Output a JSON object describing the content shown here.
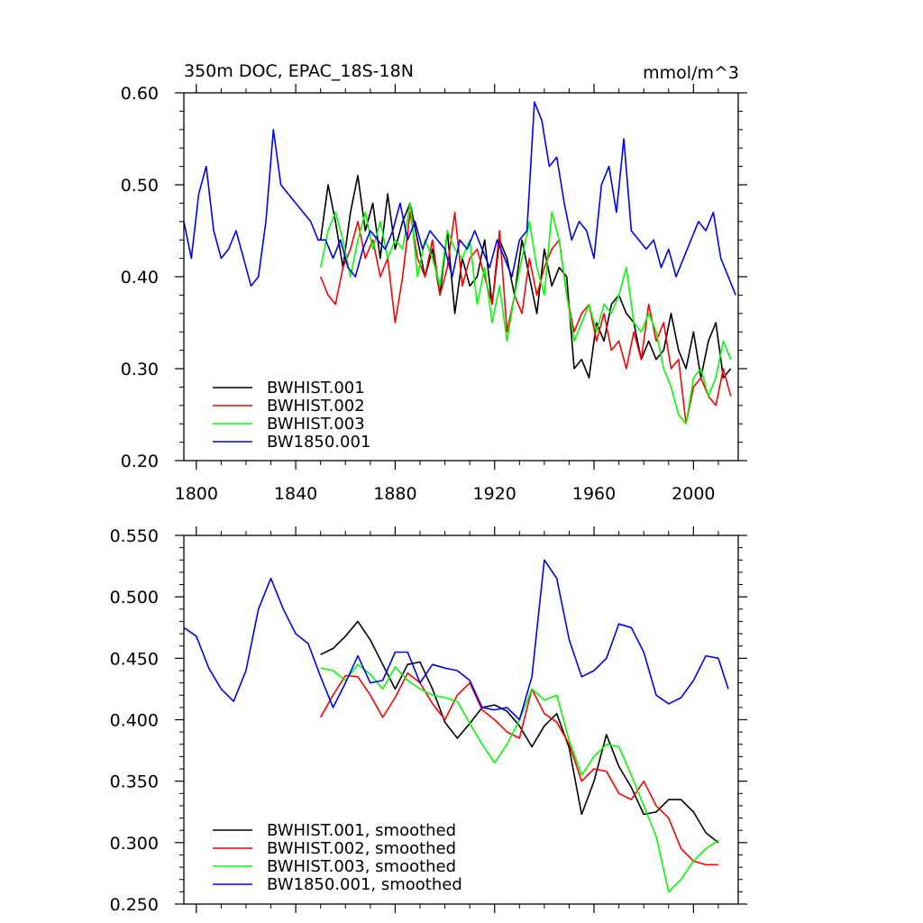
{
  "chart_data": [
    {
      "type": "line",
      "title": "350m DOC, EPAC_18S-18N",
      "units": "mmol/m^3",
      "xlim": [
        1795,
        2018
      ],
      "ylim": [
        0.2,
        0.6
      ],
      "xticks": [
        1800,
        1840,
        1880,
        1920,
        1960,
        2000
      ],
      "yticks": [
        0.2,
        0.3,
        0.4,
        0.5,
        0.6
      ],
      "xtick_labels": [
        "1800",
        "1840",
        "1880",
        "1920",
        "1960",
        "2000"
      ],
      "ytick_labels": [
        "0.20",
        "0.30",
        "0.40",
        "0.50",
        "0.60"
      ],
      "legend_position": "bottom-left",
      "series": [
        {
          "name": "BWHIST.001",
          "color": "#000000",
          "x": [
            1850,
            1853,
            1856,
            1859,
            1862,
            1865,
            1868,
            1871,
            1874,
            1877,
            1880,
            1883,
            1886,
            1889,
            1892,
            1895,
            1898,
            1901,
            1904,
            1907,
            1910,
            1913,
            1916,
            1919,
            1922,
            1925,
            1928,
            1931,
            1934,
            1937,
            1940,
            1943,
            1946,
            1949,
            1952,
            1955,
            1958,
            1961,
            1964,
            1967,
            1970,
            1973,
            1976,
            1979,
            1982,
            1985,
            1988,
            1991,
            1994,
            1997,
            2000,
            2003,
            2006,
            2009,
            2012,
            2015
          ],
          "y": [
            0.44,
            0.5,
            0.46,
            0.41,
            0.47,
            0.51,
            0.45,
            0.48,
            0.42,
            0.49,
            0.43,
            0.46,
            0.48,
            0.44,
            0.4,
            0.43,
            0.38,
            0.45,
            0.36,
            0.42,
            0.39,
            0.4,
            0.44,
            0.37,
            0.44,
            0.42,
            0.38,
            0.44,
            0.4,
            0.36,
            0.43,
            0.39,
            0.41,
            0.4,
            0.3,
            0.31,
            0.29,
            0.35,
            0.33,
            0.37,
            0.38,
            0.36,
            0.35,
            0.31,
            0.33,
            0.31,
            0.32,
            0.36,
            0.32,
            0.3,
            0.34,
            0.29,
            0.33,
            0.35,
            0.29,
            0.3
          ]
        },
        {
          "name": "BWHIST.002",
          "color": "#ff0000",
          "x": [
            1850,
            1853,
            1856,
            1859,
            1862,
            1865,
            1868,
            1871,
            1874,
            1877,
            1880,
            1883,
            1886,
            1889,
            1892,
            1895,
            1898,
            1901,
            1904,
            1907,
            1910,
            1913,
            1916,
            1919,
            1922,
            1925,
            1928,
            1931,
            1934,
            1937,
            1940,
            1943,
            1946,
            1949,
            1952,
            1955,
            1958,
            1961,
            1964,
            1967,
            1970,
            1973,
            1976,
            1979,
            1982,
            1985,
            1988,
            1991,
            1994,
            1997,
            2000,
            2003,
            2006,
            2009,
            2012,
            2015
          ],
          "y": [
            0.4,
            0.38,
            0.37,
            0.41,
            0.43,
            0.46,
            0.42,
            0.44,
            0.4,
            0.42,
            0.35,
            0.4,
            0.47,
            0.42,
            0.4,
            0.44,
            0.38,
            0.41,
            0.47,
            0.39,
            0.42,
            0.43,
            0.4,
            0.37,
            0.45,
            0.34,
            0.38,
            0.36,
            0.42,
            0.38,
            0.41,
            0.43,
            0.44,
            0.38,
            0.34,
            0.36,
            0.37,
            0.33,
            0.36,
            0.32,
            0.33,
            0.3,
            0.34,
            0.31,
            0.37,
            0.33,
            0.35,
            0.3,
            0.31,
            0.24,
            0.28,
            0.29,
            0.27,
            0.26,
            0.3,
            0.27
          ]
        },
        {
          "name": "BWHIST.003",
          "color": "#00ff00",
          "x": [
            1850,
            1853,
            1856,
            1859,
            1862,
            1865,
            1868,
            1871,
            1874,
            1877,
            1880,
            1883,
            1886,
            1889,
            1892,
            1895,
            1898,
            1901,
            1904,
            1907,
            1910,
            1913,
            1916,
            1919,
            1922,
            1925,
            1928,
            1931,
            1934,
            1937,
            1940,
            1943,
            1946,
            1949,
            1952,
            1955,
            1958,
            1961,
            1964,
            1967,
            1970,
            1973,
            1976,
            1979,
            1982,
            1985,
            1988,
            1991,
            1994,
            1997,
            2000,
            2003,
            2006,
            2009,
            2012,
            2015
          ],
          "y": [
            0.41,
            0.45,
            0.47,
            0.44,
            0.4,
            0.44,
            0.47,
            0.43,
            0.46,
            0.42,
            0.44,
            0.43,
            0.48,
            0.4,
            0.44,
            0.42,
            0.39,
            0.45,
            0.43,
            0.42,
            0.44,
            0.37,
            0.41,
            0.35,
            0.39,
            0.33,
            0.38,
            0.42,
            0.46,
            0.41,
            0.38,
            0.47,
            0.44,
            0.38,
            0.33,
            0.35,
            0.37,
            0.34,
            0.37,
            0.36,
            0.38,
            0.41,
            0.35,
            0.34,
            0.36,
            0.34,
            0.3,
            0.28,
            0.25,
            0.24,
            0.29,
            0.3,
            0.27,
            0.29,
            0.33,
            0.31
          ]
        },
        {
          "name": "BW1850.001",
          "color": "#0000ff",
          "x": [
            1795,
            1798,
            1801,
            1804,
            1807,
            1810,
            1813,
            1816,
            1819,
            1822,
            1825,
            1828,
            1831,
            1834,
            1837,
            1840,
            1843,
            1846,
            1849,
            1852,
            1855,
            1858,
            1861,
            1864,
            1867,
            1870,
            1873,
            1876,
            1879,
            1882,
            1885,
            1888,
            1891,
            1894,
            1897,
            1900,
            1903,
            1906,
            1909,
            1912,
            1915,
            1918,
            1921,
            1924,
            1927,
            1930,
            1933,
            1936,
            1939,
            1942,
            1945,
            1948,
            1951,
            1954,
            1957,
            1960,
            1963,
            1966,
            1969,
            1972,
            1975,
            1978,
            1981,
            1984,
            1987,
            1990,
            1993,
            1996,
            1999,
            2002,
            2005,
            2008,
            2011,
            2014,
            2017
          ],
          "y": [
            0.46,
            0.42,
            0.49,
            0.52,
            0.45,
            0.42,
            0.43,
            0.45,
            0.42,
            0.39,
            0.4,
            0.46,
            0.56,
            0.5,
            0.49,
            0.48,
            0.47,
            0.46,
            0.44,
            0.44,
            0.42,
            0.44,
            0.41,
            0.4,
            0.43,
            0.45,
            0.44,
            0.43,
            0.45,
            0.48,
            0.44,
            0.46,
            0.43,
            0.45,
            0.44,
            0.43,
            0.4,
            0.44,
            0.43,
            0.45,
            0.43,
            0.41,
            0.44,
            0.42,
            0.4,
            0.44,
            0.45,
            0.59,
            0.57,
            0.52,
            0.53,
            0.48,
            0.44,
            0.46,
            0.45,
            0.42,
            0.5,
            0.52,
            0.47,
            0.55,
            0.45,
            0.44,
            0.43,
            0.44,
            0.41,
            0.43,
            0.4,
            0.42,
            0.44,
            0.46,
            0.45,
            0.47,
            0.42,
            0.4,
            0.38
          ]
        }
      ]
    },
    {
      "type": "line",
      "title": "",
      "xlim": [
        1795,
        2018
      ],
      "ylim": [
        0.25,
        0.55
      ],
      "xticks": [
        1800,
        1840,
        1880,
        1920,
        1960,
        2000
      ],
      "yticks": [
        0.25,
        0.3,
        0.35,
        0.4,
        0.45,
        0.5,
        0.55
      ],
      "ytick_labels": [
        "0.250",
        "0.300",
        "0.350",
        "0.400",
        "0.450",
        "0.500",
        "0.550"
      ],
      "legend_position": "bottom-left",
      "series": [
        {
          "name": "BWHIST.001, smoothed",
          "color": "#000000",
          "x": [
            1850,
            1855,
            1860,
            1865,
            1870,
            1875,
            1880,
            1885,
            1890,
            1895,
            1900,
            1905,
            1910,
            1915,
            1920,
            1925,
            1930,
            1935,
            1940,
            1945,
            1950,
            1955,
            1960,
            1965,
            1970,
            1975,
            1980,
            1985,
            1990,
            1995,
            2000,
            2005,
            2010
          ],
          "y": [
            0.453,
            0.458,
            0.468,
            0.48,
            0.465,
            0.445,
            0.425,
            0.445,
            0.447,
            0.425,
            0.398,
            0.385,
            0.397,
            0.41,
            0.412,
            0.407,
            0.395,
            0.378,
            0.395,
            0.405,
            0.377,
            0.323,
            0.35,
            0.388,
            0.362,
            0.345,
            0.323,
            0.325,
            0.335,
            0.335,
            0.325,
            0.308,
            0.3
          ]
        },
        {
          "name": "BWHIST.002, smoothed",
          "color": "#ff0000",
          "x": [
            1850,
            1855,
            1860,
            1865,
            1870,
            1875,
            1880,
            1885,
            1890,
            1895,
            1900,
            1905,
            1910,
            1915,
            1920,
            1925,
            1930,
            1935,
            1940,
            1945,
            1950,
            1955,
            1960,
            1965,
            1970,
            1975,
            1980,
            1985,
            1990,
            1995,
            2000,
            2005,
            2010
          ],
          "y": [
            0.402,
            0.42,
            0.436,
            0.435,
            0.42,
            0.402,
            0.418,
            0.438,
            0.43,
            0.413,
            0.4,
            0.42,
            0.43,
            0.408,
            0.4,
            0.39,
            0.385,
            0.425,
            0.405,
            0.398,
            0.38,
            0.35,
            0.36,
            0.358,
            0.34,
            0.335,
            0.35,
            0.33,
            0.32,
            0.295,
            0.285,
            0.282,
            0.282
          ]
        },
        {
          "name": "BWHIST.003, smoothed",
          "color": "#00ff00",
          "x": [
            1850,
            1855,
            1860,
            1865,
            1870,
            1875,
            1880,
            1885,
            1890,
            1895,
            1900,
            1905,
            1910,
            1915,
            1920,
            1925,
            1930,
            1935,
            1940,
            1945,
            1950,
            1955,
            1960,
            1965,
            1970,
            1975,
            1980,
            1985,
            1990,
            1995,
            2000,
            2005,
            2010
          ],
          "y": [
            0.442,
            0.44,
            0.432,
            0.445,
            0.437,
            0.425,
            0.443,
            0.432,
            0.425,
            0.42,
            0.418,
            0.415,
            0.397,
            0.38,
            0.365,
            0.38,
            0.4,
            0.425,
            0.416,
            0.42,
            0.383,
            0.355,
            0.37,
            0.38,
            0.378,
            0.355,
            0.33,
            0.305,
            0.26,
            0.27,
            0.285,
            0.295,
            0.302
          ]
        },
        {
          "name": "BW1850.001, smoothed",
          "color": "#0000ff",
          "x": [
            1795,
            1800,
            1805,
            1810,
            1815,
            1820,
            1825,
            1830,
            1835,
            1840,
            1845,
            1850,
            1855,
            1860,
            1865,
            1870,
            1875,
            1880,
            1885,
            1890,
            1895,
            1900,
            1905,
            1910,
            1915,
            1920,
            1925,
            1930,
            1935,
            1940,
            1945,
            1950,
            1955,
            1960,
            1965,
            1970,
            1975,
            1980,
            1985,
            1990,
            1995,
            2000,
            2005,
            2010,
            2014
          ],
          "y": [
            0.475,
            0.468,
            0.442,
            0.425,
            0.415,
            0.44,
            0.49,
            0.515,
            0.49,
            0.47,
            0.462,
            0.435,
            0.41,
            0.43,
            0.452,
            0.43,
            0.432,
            0.455,
            0.455,
            0.43,
            0.445,
            0.442,
            0.44,
            0.432,
            0.41,
            0.408,
            0.41,
            0.4,
            0.435,
            0.53,
            0.515,
            0.465,
            0.435,
            0.44,
            0.45,
            0.478,
            0.475,
            0.455,
            0.42,
            0.413,
            0.418,
            0.432,
            0.452,
            0.45,
            0.425
          ]
        }
      ]
    }
  ]
}
